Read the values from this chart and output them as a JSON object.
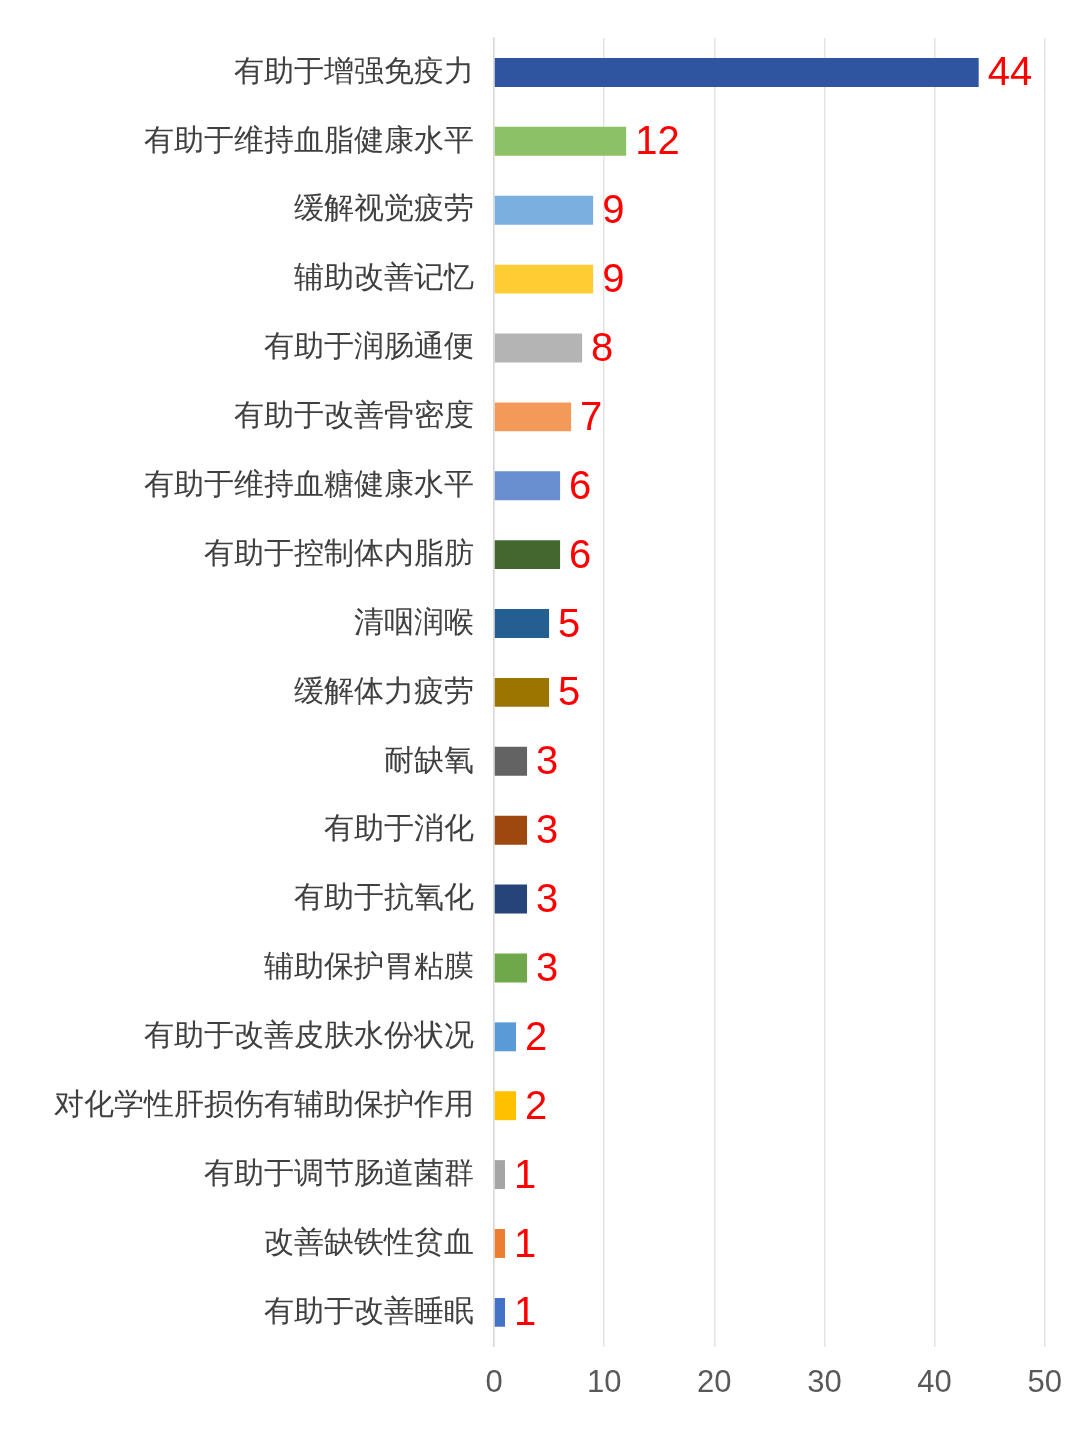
{
  "chart_data": {
    "type": "bar",
    "orientation": "horizontal",
    "categories": [
      "有助于增强免疫力",
      "有助于维持血脂健康水平",
      "缓解视觉疲劳",
      "辅助改善记忆",
      "有助于润肠通便",
      "有助于改善骨密度",
      "有助于维持血糖健康水平",
      "有助于控制体内脂肪",
      "清咽润喉",
      "缓解体力疲劳",
      "耐缺氧",
      "有助于消化",
      "有助于抗氧化",
      "辅助保护胃粘膜",
      "有助于改善皮肤水份状况",
      "对化学性肝损伤有辅助保护作用",
      "有助于调节肠道菌群",
      "改善缺铁性贫血",
      "有助于改善睡眠"
    ],
    "values": [
      44,
      12,
      9,
      9,
      8,
      7,
      6,
      6,
      5,
      5,
      3,
      3,
      3,
      3,
      2,
      2,
      1,
      1,
      1
    ],
    "colors": [
      "#2f55a0",
      "#8cc168",
      "#7aafdf",
      "#ffcc33",
      "#b4b4b4",
      "#f39a5a",
      "#6a8fd0",
      "#42672f",
      "#255e91",
      "#9c7500",
      "#636363",
      "#9e470e",
      "#264478",
      "#6fa84a",
      "#5b9bd5",
      "#ffc000",
      "#a5a5a5",
      "#ed7d31",
      "#4472c4"
    ],
    "xlim": [
      0,
      50
    ],
    "xticks": [
      0,
      10,
      20,
      30,
      40,
      50
    ],
    "grid": "x",
    "legend": false,
    "data_labels": true
  }
}
